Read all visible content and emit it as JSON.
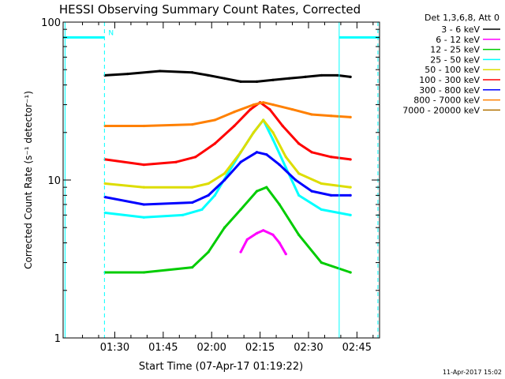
{
  "chart_data": {
    "type": "line",
    "title": "HESSI Observing Summary Count Rates, Corrected",
    "xlabel": "Start Time (07-Apr-17 01:19:22)",
    "ylabel": "Corrected Count Rate (s⁻¹ detector⁻¹)",
    "yscale": "log",
    "ylim": [
      1,
      100
    ],
    "xlim_minutes": [
      -5.0,
      93.0
    ],
    "xticks": [
      {
        "min": 11,
        "label": "01:30"
      },
      {
        "min": 26,
        "label": "01:45"
      },
      {
        "min": 41,
        "label": "02:00"
      },
      {
        "min": 56,
        "label": "02:15"
      },
      {
        "min": 71,
        "label": "02:30"
      },
      {
        "min": 86,
        "label": "02:45"
      }
    ],
    "yticks": [
      {
        "val": 1,
        "label": "1"
      },
      {
        "val": 10,
        "label": "10"
      },
      {
        "val": 100,
        "label": "100"
      }
    ],
    "legend_title": "Det 1,3,6,8, Att 0",
    "legend_position": "right, outside plot",
    "series": [
      {
        "name": "3 - 6 keV",
        "color": "#000000",
        "x": [
          8,
          15,
          25,
          35,
          40,
          45,
          50,
          55,
          60,
          65,
          70,
          75,
          80,
          84
        ],
        "y": [
          46,
          47,
          49,
          48,
          46,
          44,
          42,
          42,
          43,
          44,
          45,
          46,
          46,
          45
        ]
      },
      {
        "name": "6 - 12 keV",
        "color": "#ff00ff",
        "x": [
          50,
          52,
          55,
          57,
          60,
          62,
          64
        ],
        "y": [
          3.5,
          4.2,
          4.6,
          4.8,
          4.5,
          4.0,
          3.4
        ]
      },
      {
        "name": "12 - 25 keV",
        "color": "#00cc00",
        "x": [
          8,
          20,
          35,
          40,
          45,
          50,
          55,
          58,
          62,
          68,
          75,
          84
        ],
        "y": [
          2.6,
          2.6,
          2.8,
          3.5,
          5,
          6.5,
          8.5,
          9,
          7,
          4.5,
          3,
          2.6
        ]
      },
      {
        "name": "25 - 50 keV",
        "color": "#00ffff",
        "x": [
          8,
          20,
          32,
          38,
          42,
          46,
          50,
          54,
          57,
          60,
          64,
          68,
          75,
          84
        ],
        "y": [
          6.2,
          5.8,
          6,
          6.5,
          8,
          11,
          15,
          20,
          24,
          18,
          12,
          8,
          6.5,
          6
        ]
      },
      {
        "name": "50 - 100 keV",
        "color": "#dddd00",
        "x": [
          8,
          20,
          35,
          40,
          45,
          50,
          54,
          57,
          60,
          64,
          68,
          75,
          84
        ],
        "y": [
          9.5,
          9,
          9,
          9.5,
          11,
          15,
          20,
          24,
          20,
          14,
          11,
          9.5,
          9
        ]
      },
      {
        "name": "100 - 300 keV",
        "color": "#ff0000",
        "x": [
          8,
          20,
          30,
          36,
          42,
          48,
          53,
          56,
          59,
          63,
          68,
          72,
          78,
          84
        ],
        "y": [
          13.5,
          12.5,
          13,
          14,
          17,
          22,
          28,
          31,
          28,
          22,
          17,
          15,
          14,
          13.5
        ]
      },
      {
        "name": "300 - 800 keV",
        "color": "#0000ff",
        "x": [
          8,
          20,
          35,
          40,
          45,
          50,
          55,
          58,
          62,
          67,
          72,
          78,
          84
        ],
        "y": [
          7.8,
          7,
          7.2,
          8,
          10,
          13,
          15,
          14.5,
          12.5,
          10,
          8.5,
          8,
          8
        ]
      },
      {
        "name": "800 - 7000 keV",
        "color": "#ff8000",
        "x": [
          8,
          20,
          35,
          42,
          48,
          54,
          57,
          60,
          66,
          72,
          78,
          84
        ],
        "y": [
          22,
          22,
          22.5,
          24,
          27,
          30,
          31,
          30,
          28,
          26,
          25.5,
          25
        ]
      },
      {
        "name": "7000 - 20000 keV",
        "color": "#b07000",
        "x": [],
        "y": []
      }
    ],
    "attenuator_bars": [
      {
        "x_start": -5.0,
        "x_end": 7.8,
        "color": "#00ffff",
        "label": "N"
      },
      {
        "x_start": 80.5,
        "x_end": 93.0,
        "color": "#00ffff",
        "label": ""
      }
    ],
    "vertical_markers": [
      {
        "x": -4.4,
        "style": "solid",
        "color": "#00ffff"
      },
      {
        "x": 7.8,
        "style": "dashed",
        "color": "#00ffff"
      },
      {
        "x": 80.5,
        "style": "solid",
        "color": "#00ffff"
      },
      {
        "x": 92.5,
        "style": "dashed",
        "color": "#00ffff"
      }
    ]
  },
  "footer": {
    "timestamp": "11-Apr-2017 15:02"
  }
}
